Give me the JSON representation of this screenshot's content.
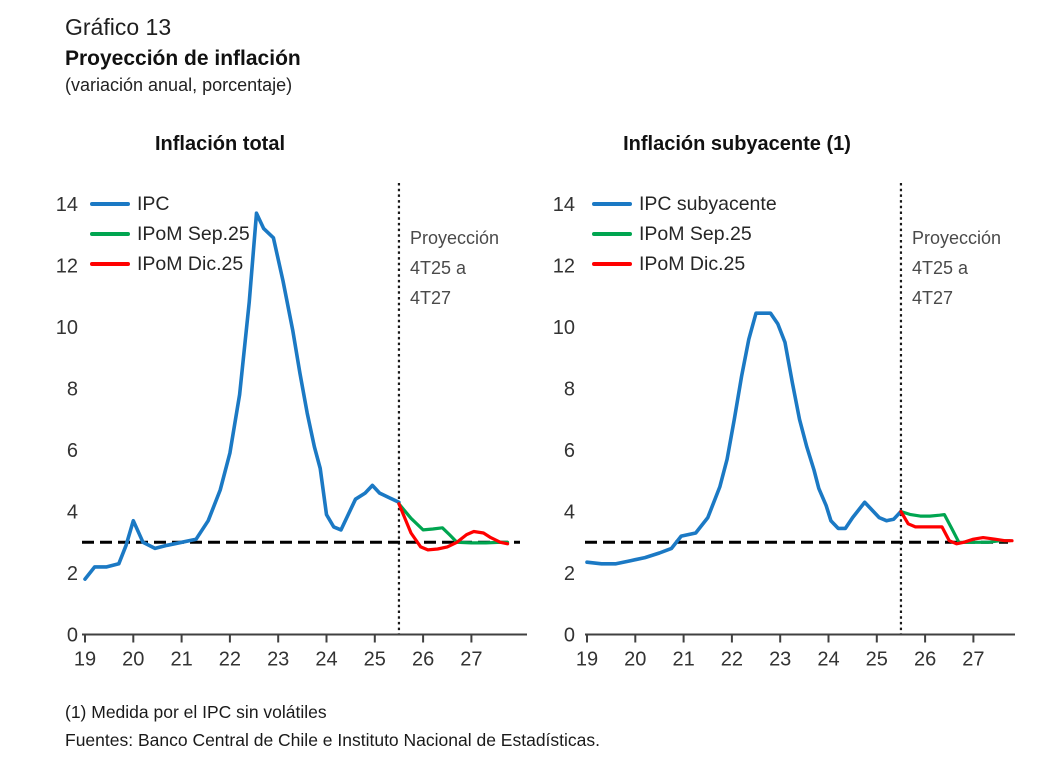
{
  "header": {
    "figure_label": "Gráfico 13",
    "title": "Proyección de inflación",
    "subtitle": "(variación anual, porcentaje)"
  },
  "footnotes": {
    "note": "(1) Medida por el IPC sin volátiles",
    "sources": "Fuentes: Banco Central de Chile e Instituto Nacional de Estadísticas."
  },
  "colors": {
    "ipc_blue": "#1B79C4",
    "sep25_green": "#00A550",
    "dic25_red": "#FF0000",
    "reference_dash": "#000000",
    "divider_dotted": "#1a1a1a",
    "axis": "#404040",
    "tick_text": "#333333"
  },
  "chart_data": [
    {
      "type": "line",
      "title": "Inflación total",
      "xlabel": "",
      "ylabel": "",
      "ylim": [
        0,
        14
      ],
      "yticks": [
        0,
        2,
        4,
        6,
        8,
        10,
        12,
        14
      ],
      "xticks": [
        19,
        20,
        21,
        22,
        23,
        24,
        25,
        26,
        27
      ],
      "xtick_labels": [
        "19",
        "20",
        "21",
        "22",
        "23",
        "24",
        "25",
        "26",
        "27"
      ],
      "grid": "off",
      "legend_position": "top-left",
      "reference_line": {
        "value": 3.0,
        "style": "dashed"
      },
      "projection_divider": {
        "x": 25.5,
        "style": "dotted"
      },
      "annotation": {
        "line1": "Proyección",
        "line2": "4T25 a",
        "line3": "4T27"
      },
      "series": [
        {
          "name": "IPC",
          "color": "#1B79C4",
          "x": [
            19.0,
            19.2,
            19.45,
            19.7,
            19.85,
            20.0,
            20.2,
            20.45,
            20.7,
            21.0,
            21.3,
            21.55,
            21.8,
            22.0,
            22.2,
            22.4,
            22.55,
            22.7,
            22.9,
            23.1,
            23.3,
            23.45,
            23.6,
            23.75,
            23.87,
            24.0,
            24.15,
            24.3,
            24.45,
            24.6,
            24.8,
            24.95,
            25.1,
            25.3,
            25.5
          ],
          "values": [
            1.8,
            2.2,
            2.2,
            2.3,
            2.9,
            3.7,
            3.0,
            2.8,
            2.9,
            3.0,
            3.1,
            3.7,
            4.7,
            5.9,
            7.8,
            10.8,
            13.7,
            13.2,
            12.9,
            11.5,
            9.9,
            8.5,
            7.2,
            6.1,
            5.4,
            3.9,
            3.5,
            3.4,
            3.9,
            4.4,
            4.6,
            4.85,
            4.6,
            4.45,
            4.3
          ]
        },
        {
          "name": "IPoM Sep.25",
          "color": "#00A550",
          "x": [
            25.5,
            25.75,
            26.0,
            26.2,
            26.4,
            26.55,
            26.7,
            27.0,
            27.3,
            27.6,
            27.75
          ],
          "values": [
            4.25,
            3.78,
            3.4,
            3.43,
            3.47,
            3.24,
            3.0,
            2.98,
            2.98,
            3.0,
            3.0
          ]
        },
        {
          "name": "IPoM Dic.25",
          "color": "#FF0000",
          "x": [
            25.5,
            25.75,
            25.95,
            26.1,
            26.3,
            26.5,
            26.7,
            26.9,
            27.05,
            27.25,
            27.4,
            27.6,
            27.75
          ],
          "values": [
            4.25,
            3.3,
            2.85,
            2.75,
            2.78,
            2.85,
            3.0,
            3.25,
            3.35,
            3.3,
            3.15,
            3.0,
            2.95
          ]
        }
      ]
    },
    {
      "type": "line",
      "title": "Inflación subyacente (1)",
      "xlabel": "",
      "ylabel": "",
      "ylim": [
        0,
        14
      ],
      "yticks": [
        0,
        2,
        4,
        6,
        8,
        10,
        12,
        14
      ],
      "xticks": [
        19,
        20,
        21,
        22,
        23,
        24,
        25,
        26,
        27
      ],
      "xtick_labels": [
        "19",
        "20",
        "21",
        "22",
        "23",
        "24",
        "25",
        "26",
        "27"
      ],
      "grid": "off",
      "legend_position": "top-left",
      "reference_line": {
        "value": 3.0,
        "style": "dashed"
      },
      "projection_divider": {
        "x": 25.5,
        "style": "dotted"
      },
      "annotation": {
        "line1": "Proyección",
        "line2": "4T25 a",
        "line3": "4T27"
      },
      "series": [
        {
          "name": "IPC subyacente",
          "color": "#1B79C4",
          "x": [
            19.0,
            19.3,
            19.6,
            19.9,
            20.2,
            20.5,
            20.75,
            20.95,
            21.25,
            21.5,
            21.75,
            21.9,
            22.05,
            22.2,
            22.35,
            22.5,
            22.8,
            22.95,
            23.1,
            23.25,
            23.4,
            23.55,
            23.7,
            23.8,
            23.95,
            24.05,
            24.2,
            24.35,
            24.5,
            24.75,
            24.9,
            25.05,
            25.2,
            25.35,
            25.5
          ],
          "values": [
            2.35,
            2.3,
            2.3,
            2.4,
            2.5,
            2.65,
            2.8,
            3.2,
            3.3,
            3.8,
            4.8,
            5.7,
            7.0,
            8.4,
            9.6,
            10.45,
            10.45,
            10.1,
            9.5,
            8.2,
            7.0,
            6.1,
            5.35,
            4.75,
            4.2,
            3.7,
            3.45,
            3.45,
            3.8,
            4.3,
            4.05,
            3.8,
            3.7,
            3.75,
            4.0
          ]
        },
        {
          "name": "IPoM Sep.25",
          "color": "#00A550",
          "x": [
            25.5,
            25.7,
            25.9,
            26.1,
            26.3,
            26.4,
            26.55,
            26.7,
            27.0,
            27.3,
            27.55,
            27.75
          ],
          "values": [
            4.0,
            3.9,
            3.85,
            3.85,
            3.88,
            3.9,
            3.45,
            3.0,
            3.0,
            3.0,
            3.05,
            3.05
          ]
        },
        {
          "name": "IPoM Dic.25",
          "color": "#FF0000",
          "x": [
            25.5,
            25.65,
            25.8,
            26.0,
            26.2,
            26.35,
            26.5,
            26.65,
            26.8,
            27.0,
            27.2,
            27.45,
            27.65,
            27.8
          ],
          "values": [
            4.0,
            3.6,
            3.5,
            3.5,
            3.5,
            3.5,
            3.05,
            2.95,
            3.0,
            3.1,
            3.15,
            3.1,
            3.05,
            3.05
          ]
        }
      ]
    }
  ]
}
